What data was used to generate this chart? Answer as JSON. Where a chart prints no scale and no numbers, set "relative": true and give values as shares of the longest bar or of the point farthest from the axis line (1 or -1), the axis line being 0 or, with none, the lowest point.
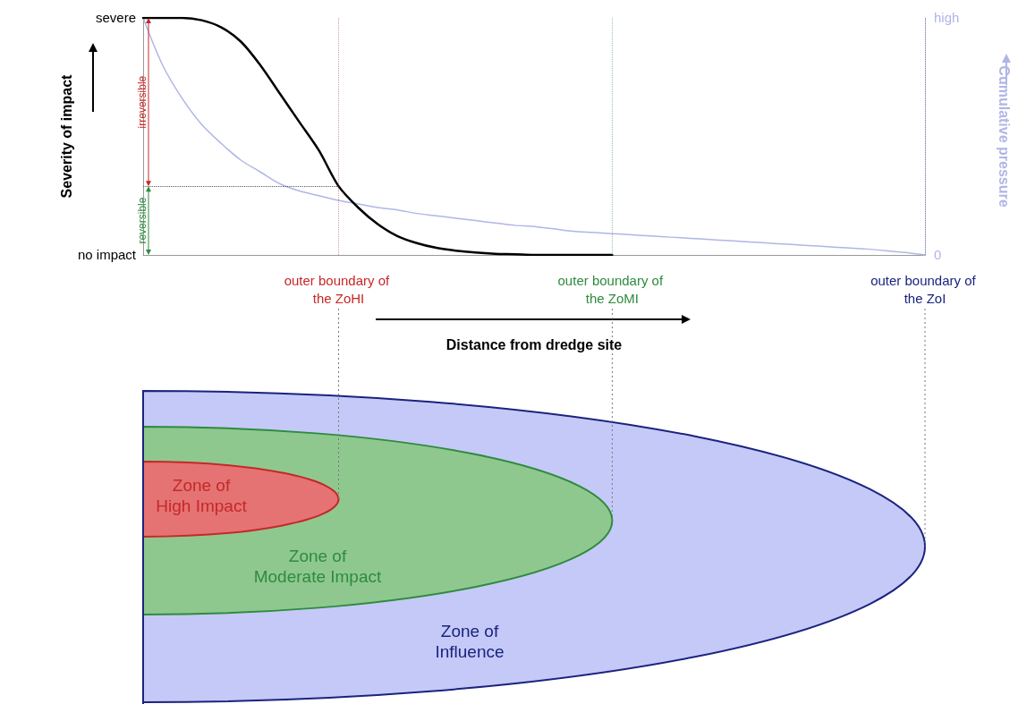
{
  "chart_data": {
    "type": "line",
    "relative": true,
    "xlabel": "Distance from dredge site",
    "ylabel": "Severity of impact",
    "y2label": "Cumulative pressure",
    "categories": [
      null,
      null,
      null,
      null,
      null,
      null,
      null,
      null,
      null,
      null,
      "outer boundary of the ZoHI",
      null,
      null,
      null,
      null,
      null,
      null,
      null,
      null,
      null,
      null,
      null,
      null,
      null,
      "outer boundary of the ZoMI",
      null,
      null,
      null,
      null,
      null,
      null,
      null,
      null,
      null,
      null,
      null,
      null,
      null,
      null,
      null,
      "outer boundary of the ZoI"
    ],
    "series": [
      {
        "color": "#000000",
        "values": [
          1,
          1,
          1,
          0.99,
          0.96,
          0.9,
          0.8,
          0.68,
          0.56,
          0.44,
          0.29,
          0.2,
          0.13,
          0.08,
          0.05,
          0.03,
          0.018,
          0.01,
          0.005,
          0.003,
          0,
          0,
          0,
          0,
          0,
          null,
          null,
          null,
          null,
          null,
          null,
          null,
          null,
          null,
          null,
          null,
          null,
          null,
          null,
          null,
          null
        ]
      },
      {
        "color": "#b0b6e6",
        "axis": "y2",
        "values": [
          1,
          0.8,
          0.66,
          0.55,
          0.47,
          0.4,
          0.35,
          0.3,
          0.27,
          0.25,
          0.23,
          0.215,
          0.2,
          0.19,
          0.175,
          0.165,
          0.155,
          0.145,
          0.135,
          0.125,
          0.12,
          0.11,
          0.1,
          0.095,
          0.09,
          0.085,
          0.08,
          0.075,
          0.07,
          0.065,
          0.06,
          0.055,
          0.05,
          0.045,
          0.04,
          0.035,
          0.03,
          0.025,
          0.018,
          0.01,
          0
        ]
      }
    ],
    "ref_lines": [
      {
        "axis": "y",
        "value": 0.29,
        "color": "#555555",
        "line_style": "dotted"
      },
      {
        "axis": "x",
        "value": "outer boundary of the ZoHI",
        "color": "#c62828",
        "line_style": "dotted"
      },
      {
        "axis": "x",
        "value": "outer boundary of the ZoMI",
        "color": "#2e8b3e",
        "line_style": "dotted"
      },
      {
        "axis": "x",
        "value": "outer boundary of the ZoI",
        "color": "#1a237e",
        "line_style": "dotted"
      }
    ],
    "annotations": [
      "Zone of High Impact",
      "Zone of Moderate Impact",
      "Zone of Influence",
      "irreversible",
      "reversible",
      "severe",
      "no impact",
      "high",
      "0"
    ],
    "grid": false,
    "marker": "none",
    "line_style": "solid"
  }
}
